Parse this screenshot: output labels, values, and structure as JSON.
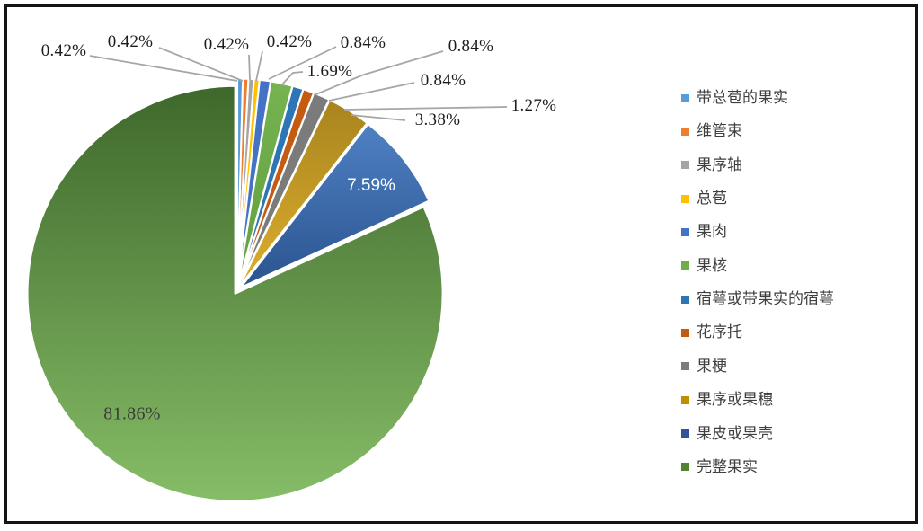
{
  "chart_data": {
    "type": "pie",
    "title": "",
    "unit": "%",
    "categories": [
      "带总苞的果实",
      "维管束",
      "果序轴",
      "总苞",
      "果肉",
      "果核",
      "宿萼或带果实的宿萼",
      "花序托",
      "果梗",
      "果序或果穗",
      "果皮或果壳",
      "完整果实"
    ],
    "values": [
      0.42,
      0.42,
      0.42,
      0.42,
      0.84,
      1.69,
      0.84,
      0.84,
      1.27,
      3.38,
      7.59,
      81.86
    ],
    "labels_display": [
      "0.42%",
      "0.42%",
      "0.42%",
      "0.42%",
      "0.84%",
      "1.69%",
      "0.84%",
      "0.84%",
      "1.27%",
      "3.38%",
      "7.59%",
      "81.86%"
    ],
    "colors": [
      "#5B9BD5",
      "#ED7D31",
      "#A5A5A5",
      "#FFC000",
      "#4472C4",
      "#70AD47",
      "#2E75B6",
      "#C55A11",
      "#7B7B7B",
      "#BF8F00",
      "#2F5597",
      "#548235"
    ],
    "start_angle_deg": 0,
    "direction": "clockwise",
    "legend_position": "right",
    "leader_line_color": "#A6A6A6",
    "slice_border_color": "#FFFFFF",
    "inside_label_text_colors": {
      "果皮或果壳": "#FFFFFF",
      "完整果实": "#3A3A3A"
    },
    "frame_border_color": "#141414",
    "background_color": "#FFFFFF"
  }
}
